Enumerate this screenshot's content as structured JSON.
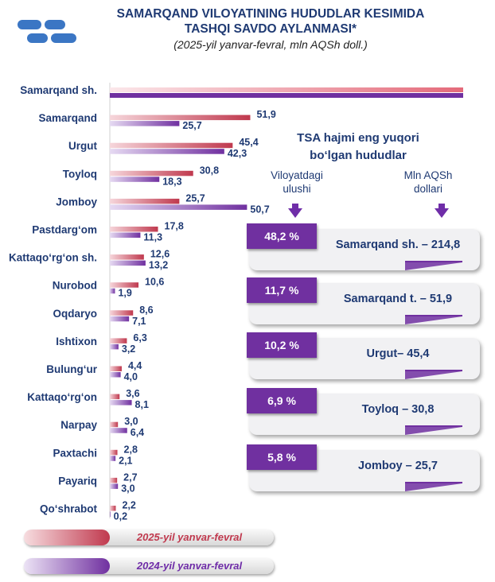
{
  "header": {
    "title_line1": "SAMARQAND VILOYATINING HUDUDLAR KESIMIDA",
    "title_line2": "TASHQI SAVDO AYLANMASI*",
    "subtitle": "(2025-yil yanvar-fevral, mln AQSh doll.)"
  },
  "colors": {
    "series_2025": "#c0394e",
    "series_2024": "#7030a0",
    "text": "#1f3a73"
  },
  "chart_data": {
    "type": "bar",
    "orientation": "horizontal",
    "title": "SAMARQAND VILOYATINING HUDUDLAR KESIMIDA TASHQI SAVDO AYLANMASI*",
    "subtitle": "(2025-yil yanvar-fevral, mln AQSh doll.)",
    "categories": [
      "Samarqand sh.",
      "Samarqand",
      "Urgut",
      "Toyloq",
      "Jomboy",
      "Pastdarg‘om",
      "Kattaqo‘rg‘on sh.",
      "Nurobod",
      "Oqdaryo",
      "Ishtixon",
      "Bulung‘ur",
      "Kattaqo‘rg‘on",
      "Narpay",
      "Paxtachi",
      "Payariq",
      "Qo‘shrabot"
    ],
    "series": [
      {
        "name": "2025-yil yanvar-fevral",
        "values": [
          214.8,
          51.9,
          45.4,
          30.8,
          25.7,
          17.8,
          12.6,
          10.6,
          8.6,
          6.3,
          4.4,
          3.6,
          3.0,
          2.8,
          2.7,
          2.2
        ]
      },
      {
        "name": "2024-yil yanvar-fevral",
        "values": [
          null,
          25.7,
          42.3,
          18.3,
          50.7,
          11.3,
          13.2,
          1.9,
          7.1,
          3.2,
          4.0,
          8.1,
          6.4,
          2.1,
          3.0,
          0.2
        ]
      }
    ],
    "value_labels": [
      [
        null,
        "51,9",
        "45,4",
        "30,8",
        "25,7",
        "17,8",
        "12,6",
        "10,6",
        "8,6",
        "6,3",
        "4,4",
        "3,6",
        "3,0",
        "2,8",
        "2,7",
        "2,2"
      ],
      [
        null,
        "25,7",
        "42,3",
        "18,3",
        "50,7",
        "11,3",
        "13,2",
        "1,9",
        "7,1",
        "3,2",
        "4,0",
        "8,1",
        "6,4",
        "2,1",
        "3,0",
        "0,2"
      ]
    ],
    "legend_position": "bottom-left",
    "grid": false
  },
  "panel": {
    "title_line1": "TSA hajmi eng yuqori",
    "title_line2": "bo‘lgan hududlar",
    "col1_line1": "Viloyatdagi",
    "col1_line2": "ulushi",
    "col2_line1": "Mln AQSh",
    "col2_line2": "dollari",
    "cards": [
      {
        "share": "48,2 %",
        "label": "Samarqand sh. – 214,8"
      },
      {
        "share": "11,7 %",
        "label": "Samarqand t. – 51,9"
      },
      {
        "share": "10,2 %",
        "label": "Urgut– 45,4"
      },
      {
        "share": "6,9 %",
        "label": "Toyloq – 30,8"
      },
      {
        "share": "5,8 %",
        "label": "Jomboy – 25,7"
      }
    ]
  },
  "legend": {
    "label_2025": "2025-yil yanvar-fevral",
    "label_2024": "2024-yil yanvar-fevral"
  }
}
